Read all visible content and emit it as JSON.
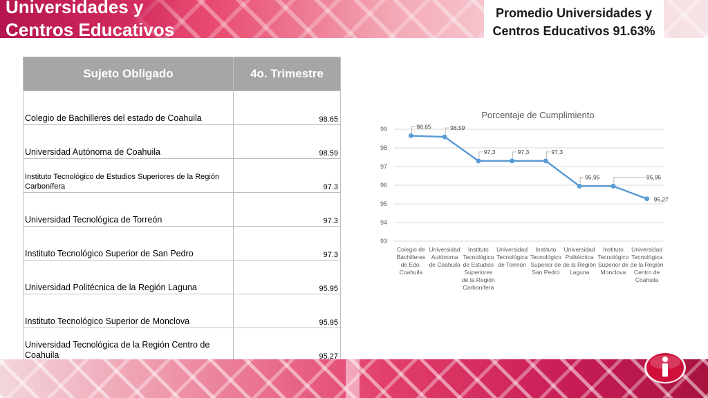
{
  "slide": {
    "title_line1": "Universidades y",
    "title_line2": "Centros Educativos",
    "average_line1": "Promedio Universidades y",
    "average_line2": "Centros Educativos 91.63%"
  },
  "table": {
    "headers": [
      "Sujeto Obligado",
      "4o. Trimestre"
    ],
    "rows": [
      {
        "name": "Colegio de Bachilleres del estado de Coahuila",
        "value": "98.65"
      },
      {
        "name": "Universidad Autónoma de Coahuila",
        "value": "98.59"
      },
      {
        "name": "Instituto Tecnológico de Estudios Superiores de la Región  Carbonífera",
        "value": "97.3"
      },
      {
        "name": "Universidad Tecnológica de Torreón",
        "value": "97.3"
      },
      {
        "name": "Instituto Tecnológico Superior de San Pedro",
        "value": "97.3"
      },
      {
        "name": "Universidad Politécnica de la Región Laguna",
        "value": "95.95"
      },
      {
        "name": "Instituto Tecnológico  Superior de Monclova",
        "value": "95.95"
      },
      {
        "name": "Universidad Tecnológica  de la Región Centro de Coahuila",
        "value": "95.27"
      }
    ]
  },
  "chart_data": {
    "type": "line",
    "title": "Porcentaje de Cumplimiento",
    "categories": [
      [
        "Colegio de",
        "Bachilleres",
        "de Edo.",
        "Coahuila"
      ],
      [
        "Universidad",
        "Autónoma",
        "de Coahuila"
      ],
      [
        "Instituto",
        "Tecnológico",
        "de Estudios",
        "Superiores",
        "de la Región",
        "Carbonífera"
      ],
      [
        "Universidad",
        "Tecnológica",
        "de Torreón"
      ],
      [
        "Instituto",
        "Tecnológico",
        "Superior de",
        "San Pedro"
      ],
      [
        "Universidad",
        "Politécnica",
        "de la Región",
        "Laguna"
      ],
      [
        "Instituto",
        "Tecnológico",
        "Superior de",
        "Monclova"
      ],
      [
        "Universidad",
        "Tecnológica",
        "de la Región",
        "Centro de",
        "Coahuila"
      ]
    ],
    "values": [
      98.65,
      98.59,
      97.3,
      97.3,
      97.3,
      95.95,
      95.95,
      95.27
    ],
    "value_labels": [
      "98,65",
      "98,59",
      "97,3",
      "97,3",
      "97,3",
      "95,95",
      "95,95",
      "95,27"
    ],
    "ylim": [
      93,
      99
    ],
    "yticks": [
      "93",
      "94",
      "95",
      "96",
      "97",
      "98",
      "99"
    ],
    "grid": true,
    "line_color": "#5b9bd5"
  },
  "icon": {
    "name": "info-icon",
    "color": "#d0103a"
  }
}
